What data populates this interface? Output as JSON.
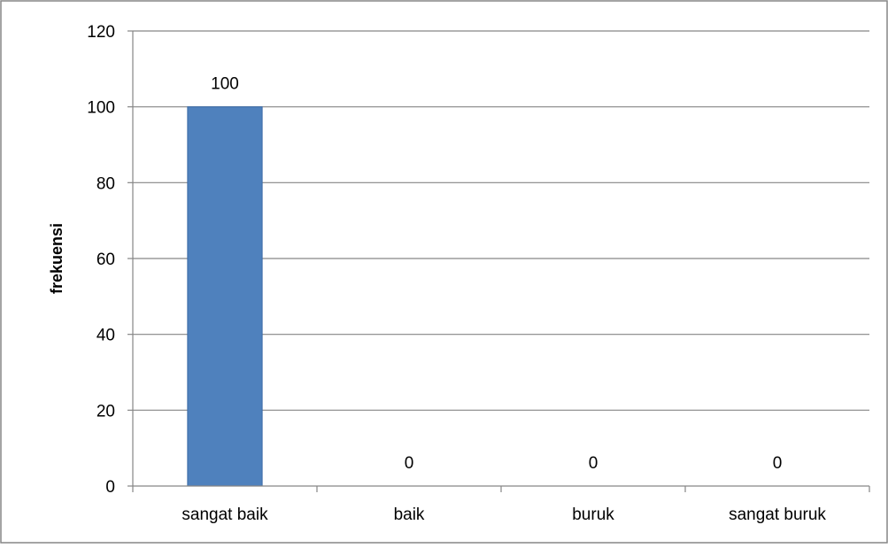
{
  "chart_data": {
    "type": "bar",
    "title": "",
    "xlabel": "",
    "ylabel": "frekuensi",
    "categories": [
      "sangat baik",
      "baik",
      "buruk",
      "sangat buruk"
    ],
    "values": [
      100,
      0,
      0,
      0
    ],
    "data_labels": [
      "100",
      "0",
      "0",
      "0"
    ],
    "ylim": [
      0,
      120
    ],
    "yticks": [
      0,
      20,
      40,
      60,
      80,
      100,
      120
    ],
    "ytick_labels": [
      "0",
      "20",
      "40",
      "60",
      "80",
      "100",
      "120"
    ],
    "grid": true,
    "legend": "none",
    "colors": {
      "bar": "#4f81bd",
      "bar_edge": "#3a6aa6",
      "gridline": "#868686",
      "axis": "#868686",
      "frame": "#868686"
    }
  }
}
